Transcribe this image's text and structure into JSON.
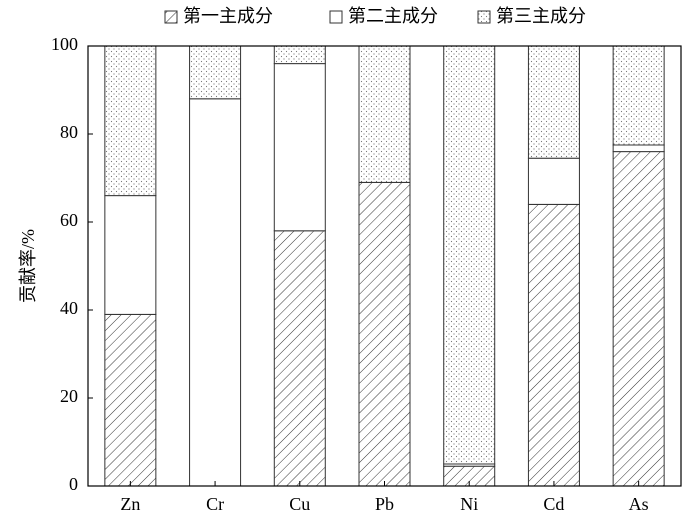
{
  "chart_data": {
    "type": "stacked_bar",
    "y_label": "贡献率/%",
    "categories": [
      "Zn",
      "Cr",
      "Cu",
      "Pb",
      "Ni",
      "Cd",
      "As"
    ],
    "series": [
      {
        "name": "第一主成分",
        "pattern": "hatch",
        "color": "#333333",
        "values": [
          39,
          0,
          58,
          69,
          4.5,
          64,
          76
        ]
      },
      {
        "name": "第二主成分",
        "pattern": "none",
        "color": "#333333",
        "values": [
          27,
          88,
          38,
          0,
          0.5,
          10.5,
          1.5
        ]
      },
      {
        "name": "第三主成分",
        "pattern": "dots",
        "color": "#333333",
        "values": [
          34,
          12,
          4,
          31,
          95,
          25.5,
          22.5
        ]
      }
    ],
    "ylim": [
      0,
      100
    ],
    "yticks": [
      0,
      20,
      40,
      60,
      80,
      100
    ],
    "legend": "top"
  }
}
